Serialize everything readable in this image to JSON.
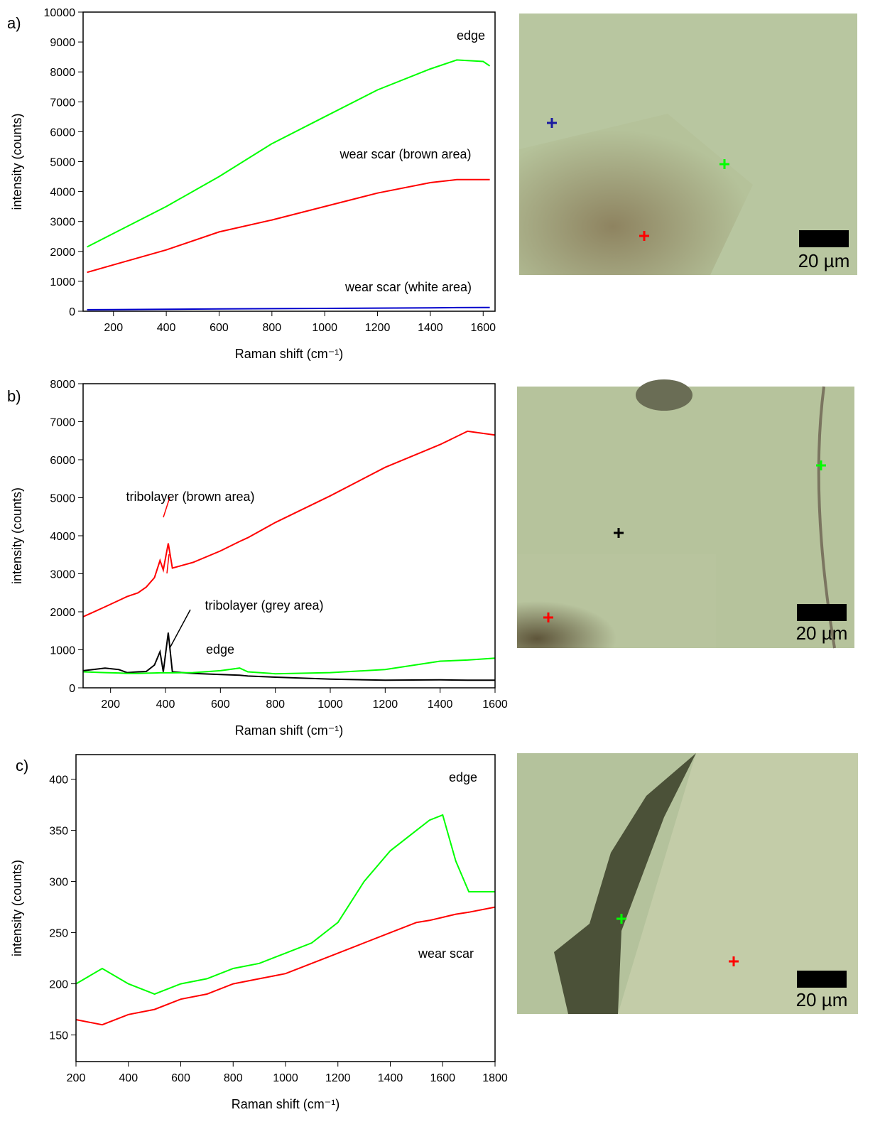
{
  "chart_data": [
    {
      "type": "line",
      "panel_label": "a)",
      "xlabel": "Raman shift (cm⁻¹)",
      "ylabel": "intensity (counts)",
      "xlim": [
        85,
        1645
      ],
      "xticks": [
        200,
        400,
        600,
        800,
        1000,
        1200,
        1400,
        1600
      ],
      "ylim": [
        0,
        10000
      ],
      "yticks": [
        0,
        1000,
        2000,
        3000,
        4000,
        5000,
        6000,
        7000,
        8000,
        9000,
        10000
      ],
      "x": [
        100,
        200,
        400,
        600,
        800,
        1000,
        1200,
        1400,
        1500,
        1600,
        1625
      ],
      "series": [
        {
          "name": "edge",
          "color": "#00ff00",
          "values": [
            2150,
            2600,
            3500,
            4500,
            5600,
            6500,
            7400,
            8100,
            8400,
            8350,
            8200
          ]
        },
        {
          "name": "wear scar (brown area)",
          "color": "#ff0000",
          "values": [
            1300,
            1550,
            2050,
            2650,
            3050,
            3500,
            3950,
            4300,
            4400,
            4400,
            4400
          ]
        },
        {
          "name": "wear scar (white area)",
          "color": "#0000cc",
          "values": [
            50,
            55,
            65,
            75,
            85,
            95,
            105,
            115,
            120,
            125,
            125
          ]
        }
      ]
    },
    {
      "type": "line",
      "panel_label": "b)",
      "xlabel": "Raman shift (cm⁻¹)",
      "ylabel": "intensity (counts)",
      "xlim": [
        100,
        1600
      ],
      "xticks": [
        200,
        400,
        600,
        800,
        1000,
        1200,
        1400,
        1600
      ],
      "ylim": [
        0,
        8000
      ],
      "yticks": [
        0,
        1000,
        2000,
        3000,
        4000,
        5000,
        6000,
        7000,
        8000
      ],
      "x": [
        100,
        180,
        230,
        260,
        300,
        330,
        360,
        380,
        392,
        410,
        425,
        500,
        600,
        670,
        700,
        800,
        1000,
        1200,
        1400,
        1500,
        1600
      ],
      "series": [
        {
          "name": "tribolayer (brown area)",
          "color": "#ff0000",
          "values": [
            1870,
            2130,
            2300,
            2400,
            2500,
            2650,
            2900,
            3350,
            3100,
            3800,
            3150,
            3300,
            3600,
            3850,
            3950,
            4350,
            5050,
            5800,
            6400,
            6750,
            6650
          ]
        },
        {
          "name": "tribolayer (grey area)",
          "color": "#000000",
          "values": [
            450,
            520,
            480,
            400,
            420,
            430,
            600,
            950,
            420,
            1450,
            420,
            380,
            350,
            330,
            310,
            280,
            230,
            200,
            210,
            200,
            200
          ]
        },
        {
          "name": "edge",
          "color": "#00ff00",
          "values": [
            420,
            400,
            390,
            380,
            380,
            385,
            390,
            395,
            395,
            395,
            395,
            400,
            450,
            520,
            420,
            370,
            400,
            480,
            700,
            730,
            780
          ]
        }
      ]
    },
    {
      "type": "line",
      "panel_label": "c)",
      "xlabel": "Raman shift (cm⁻¹)",
      "ylabel": "intensity (counts)",
      "xlim": [
        200,
        1800
      ],
      "xticks": [
        200,
        400,
        600,
        800,
        1000,
        1200,
        1400,
        1600,
        1800
      ],
      "ylim": [
        124,
        424
      ],
      "yticks": [
        150,
        200,
        250,
        300,
        350,
        400
      ],
      "x": [
        200,
        300,
        400,
        500,
        600,
        700,
        800,
        900,
        1000,
        1100,
        1200,
        1300,
        1400,
        1500,
        1550,
        1600,
        1650,
        1700,
        1800
      ],
      "series": [
        {
          "name": "edge",
          "color": "#00ff00",
          "values": [
            200,
            215,
            200,
            190,
            200,
            205,
            215,
            220,
            230,
            240,
            260,
            300,
            330,
            350,
            360,
            365,
            320,
            290,
            290
          ]
        },
        {
          "name": "wear scar",
          "color": "#ff0000",
          "values": [
            165,
            160,
            170,
            175,
            185,
            190,
            200,
            205,
            210,
            220,
            230,
            240,
            250,
            260,
            262,
            265,
            268,
            270,
            275
          ]
        }
      ]
    }
  ],
  "micrographs": [
    {
      "scale_label": "20 µm"
    },
    {
      "scale_label": "20 µm"
    },
    {
      "scale_label": "20 µm"
    }
  ]
}
